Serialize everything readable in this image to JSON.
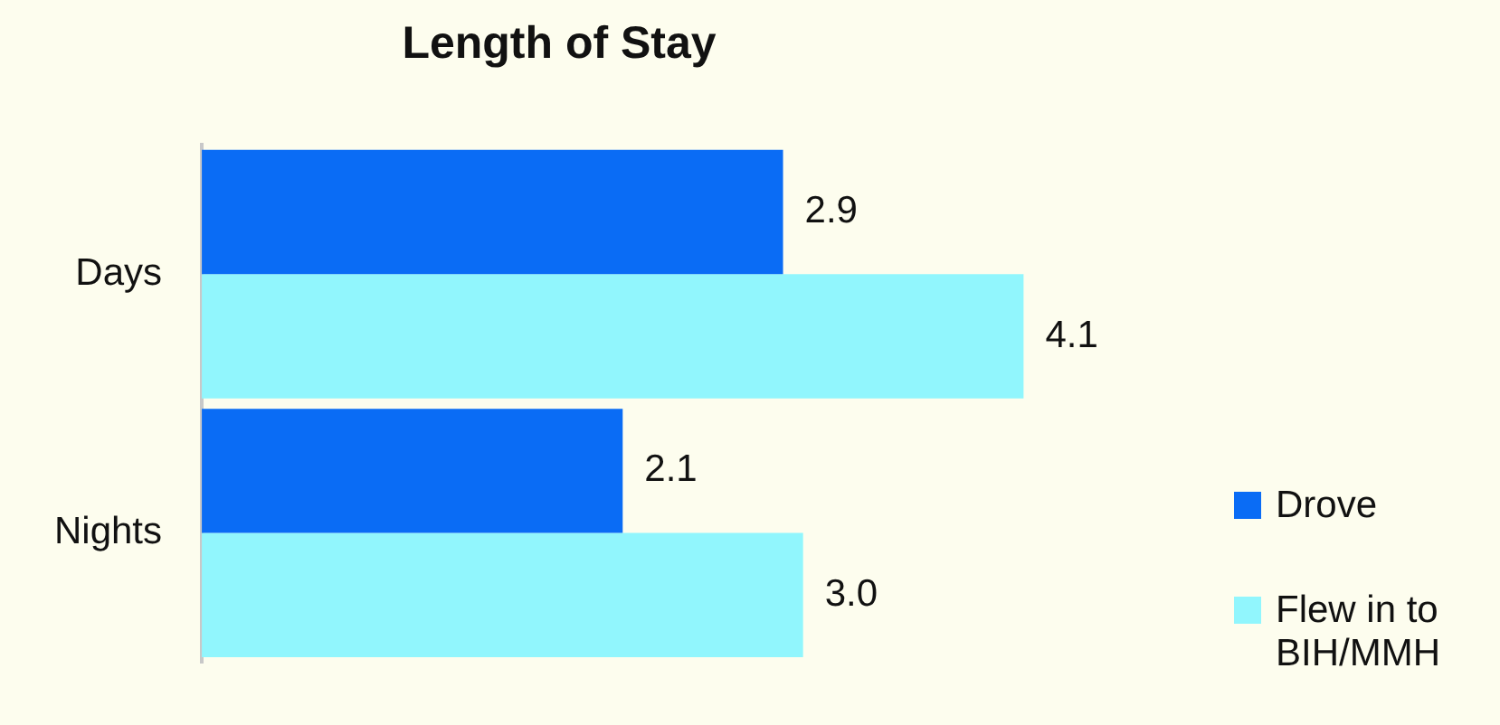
{
  "chart_data": {
    "type": "bar",
    "orientation": "horizontal",
    "title": "Length of Stay",
    "categories": [
      "Days",
      "Nights"
    ],
    "series": [
      {
        "name": "Drove",
        "color": "#0a6cf5",
        "values": [
          2.9,
          2.1
        ],
        "value_labels": [
          "2.9",
          "2.1"
        ]
      },
      {
        "name": "Flew in to BIH/MMH",
        "color": "#91f6fd",
        "values": [
          4.1,
          3.0
        ],
        "value_labels": [
          "4.1",
          "3.0"
        ]
      }
    ],
    "legend": "right",
    "tick_labels": "y"
  }
}
